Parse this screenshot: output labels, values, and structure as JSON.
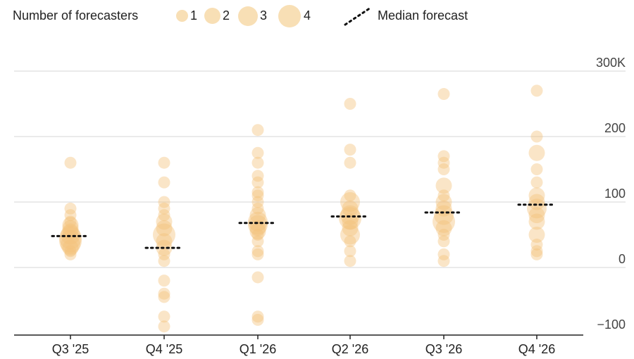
{
  "legend": {
    "size_title": "Number of forecasters",
    "size_items": [
      "1",
      "2",
      "3",
      "4"
    ],
    "median_label": "Median forecast"
  },
  "colors": {
    "bubble": "#f2c27a",
    "bubble_legend": "#f7d9a8",
    "median": "#111111",
    "grid": "#e4e4e4",
    "axis": "#222222"
  },
  "chart_data": {
    "type": "scatter",
    "title": "",
    "xlabel": "",
    "ylabel": "",
    "ylim": [
      -100,
      300
    ],
    "yticks": [
      300,
      200,
      100,
      0,
      -100
    ],
    "ytick_labels": [
      "300K",
      "200",
      "100",
      "0",
      "−100"
    ],
    "grid": true,
    "legend_position": "top",
    "categories": [
      "Q3 '25",
      "Q4 '25",
      "Q1 '26",
      "Q2 '26",
      "Q3 '26",
      "Q4 '26"
    ],
    "median": [
      48,
      30,
      68,
      78,
      84,
      96
    ],
    "points": [
      [
        [
          160,
          1
        ],
        [
          90,
          1
        ],
        [
          80,
          1
        ],
        [
          70,
          1
        ],
        [
          65,
          2
        ],
        [
          60,
          2
        ],
        [
          55,
          2
        ],
        [
          50,
          3
        ],
        [
          45,
          4
        ],
        [
          40,
          4
        ],
        [
          35,
          3
        ],
        [
          30,
          2
        ],
        [
          25,
          1
        ],
        [
          20,
          1
        ]
      ],
      [
        [
          160,
          1
        ],
        [
          130,
          1
        ],
        [
          100,
          1
        ],
        [
          90,
          1
        ],
        [
          80,
          1
        ],
        [
          70,
          2
        ],
        [
          60,
          2
        ],
        [
          50,
          4
        ],
        [
          40,
          2
        ],
        [
          30,
          2
        ],
        [
          20,
          1
        ],
        [
          10,
          1
        ],
        [
          -20,
          1
        ],
        [
          -40,
          1
        ],
        [
          -45,
          1
        ],
        [
          -75,
          1
        ],
        [
          -90,
          1
        ]
      ],
      [
        [
          210,
          1
        ],
        [
          175,
          1
        ],
        [
          160,
          1
        ],
        [
          140,
          1
        ],
        [
          130,
          1
        ],
        [
          115,
          1
        ],
        [
          110,
          1
        ],
        [
          100,
          1
        ],
        [
          90,
          1
        ],
        [
          80,
          2
        ],
        [
          70,
          3
        ],
        [
          65,
          3
        ],
        [
          60,
          2
        ],
        [
          55,
          2
        ],
        [
          50,
          1
        ],
        [
          40,
          1
        ],
        [
          25,
          1
        ],
        [
          20,
          1
        ],
        [
          -15,
          1
        ],
        [
          -75,
          1
        ],
        [
          -80,
          1
        ]
      ],
      [
        [
          250,
          1
        ],
        [
          180,
          1
        ],
        [
          160,
          1
        ],
        [
          110,
          1
        ],
        [
          100,
          3
        ],
        [
          90,
          2
        ],
        [
          80,
          3
        ],
        [
          75,
          4
        ],
        [
          70,
          2
        ],
        [
          60,
          2
        ],
        [
          50,
          3
        ],
        [
          40,
          1
        ],
        [
          25,
          1
        ],
        [
          10,
          1
        ]
      ],
      [
        [
          265,
          1
        ],
        [
          170,
          1
        ],
        [
          160,
          1
        ],
        [
          150,
          1
        ],
        [
          125,
          2
        ],
        [
          110,
          1
        ],
        [
          100,
          2
        ],
        [
          90,
          2
        ],
        [
          80,
          3
        ],
        [
          70,
          4
        ],
        [
          60,
          2
        ],
        [
          50,
          1
        ],
        [
          40,
          1
        ],
        [
          20,
          1
        ],
        [
          10,
          1
        ]
      ],
      [
        [
          270,
          1
        ],
        [
          200,
          1
        ],
        [
          175,
          2
        ],
        [
          150,
          1
        ],
        [
          130,
          1
        ],
        [
          110,
          2
        ],
        [
          100,
          2
        ],
        [
          90,
          3
        ],
        [
          80,
          2
        ],
        [
          70,
          2
        ],
        [
          50,
          2
        ],
        [
          35,
          1
        ],
        [
          25,
          1
        ],
        [
          20,
          1
        ]
      ]
    ]
  }
}
